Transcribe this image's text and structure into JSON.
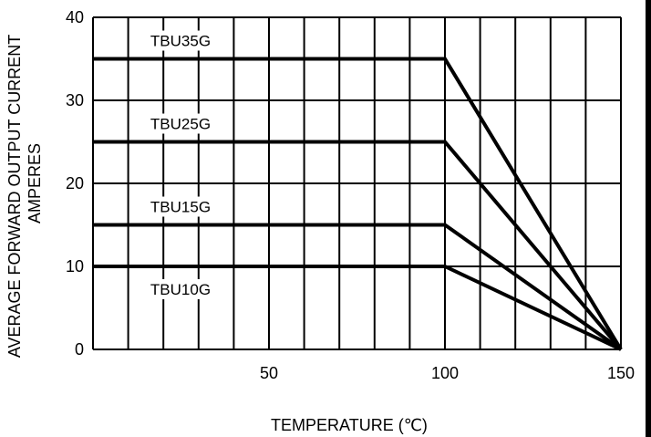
{
  "chart_data": {
    "type": "line",
    "title": "",
    "xlabel": "TEMPERATURE (℃)",
    "ylabel": "AVERAGE FORWARD OUTPUT  CURRENT",
    "ylabel_units": "AMPERES",
    "xlim": [
      0,
      150
    ],
    "ylim": [
      0,
      40
    ],
    "x_ticks": [
      50,
      100,
      150
    ],
    "y_ticks": [
      0,
      10,
      20,
      30,
      40
    ],
    "x_grid_step": 10,
    "y_grid_step": 10,
    "grid": true,
    "series": [
      {
        "name": "TBU35G",
        "points": [
          [
            0,
            35
          ],
          [
            100,
            35
          ],
          [
            150,
            0
          ]
        ]
      },
      {
        "name": "TBU25G",
        "points": [
          [
            0,
            25
          ],
          [
            100,
            25
          ],
          [
            150,
            0
          ]
        ]
      },
      {
        "name": "TBU15G",
        "points": [
          [
            0,
            15
          ],
          [
            100,
            15
          ],
          [
            150,
            0
          ]
        ]
      },
      {
        "name": "TBU10G",
        "points": [
          [
            0,
            10
          ],
          [
            100,
            10
          ],
          [
            150,
            0
          ]
        ]
      }
    ],
    "annotations": [
      {
        "text": "TBU35G",
        "series": 0,
        "position": "above-line"
      },
      {
        "text": "TBU25G",
        "series": 1,
        "position": "above-line"
      },
      {
        "text": "TBU15G",
        "series": 2,
        "position": "above-line"
      },
      {
        "text": "TBU10G",
        "series": 3,
        "position": "below-line"
      }
    ]
  }
}
